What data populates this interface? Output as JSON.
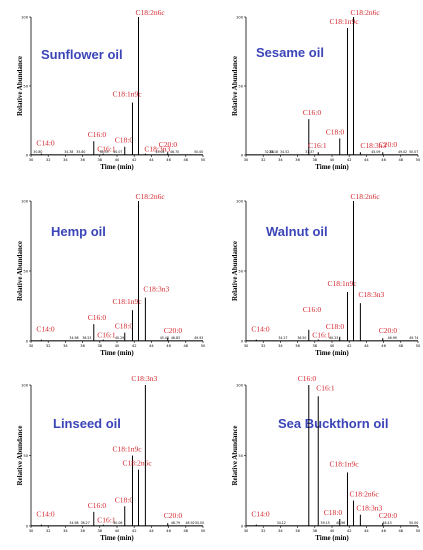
{
  "colors": {
    "title": "#3b45b8",
    "peak_label": "#d3262d",
    "axis": "#000000"
  },
  "chart_data": [
    {
      "type": "line",
      "title": "Sunflower oil",
      "xlabel": "Time (min)",
      "ylabel": "Relative Abundance",
      "xlim": [
        30,
        50
      ],
      "ylim": [
        0,
        100
      ],
      "x_ticks": [
        "30",
        "32",
        "34",
        "36",
        "38",
        "40",
        "42",
        "44",
        "46",
        "48",
        "50"
      ],
      "y_ticks": [
        "0",
        "50",
        "100"
      ],
      "peaks": [
        {
          "label": "C14:0",
          "x": 31.2,
          "y": 1
        },
        {
          "label": "C16:0",
          "x": 37.3,
          "y": 10
        },
        {
          "label": "C16:1",
          "x": 38.4,
          "y": 1
        },
        {
          "label": "C18:0",
          "x": 40.9,
          "y": 6
        },
        {
          "label": "C18:1n9c",
          "x": 41.8,
          "y": 38
        },
        {
          "label": "C18:2n6c",
          "x": 42.5,
          "y": 100
        },
        {
          "label": "C18:3n3",
          "x": 43.3,
          "y": 1
        },
        {
          "label": "C20:0",
          "x": 45.9,
          "y": 2
        }
      ],
      "rt_labels": [
        "30.80",
        "34.38",
        "35.80",
        "38.53",
        "40.07",
        "45.04",
        "46.70",
        "50.00"
      ]
    },
    {
      "type": "line",
      "title": "Sesame oil",
      "xlabel": "Time (min)",
      "ylabel": "Relative Abundance",
      "xlim": [
        30,
        50
      ],
      "ylim": [
        0,
        100
      ],
      "x_ticks": [
        "30",
        "32",
        "34",
        "36",
        "38",
        "40",
        "42",
        "44",
        "46",
        "48",
        "50"
      ],
      "y_ticks": [
        "0",
        "50",
        "100"
      ],
      "peaks": [
        {
          "label": "C16:0",
          "x": 37.3,
          "y": 26
        },
        {
          "label": "C16:1",
          "x": 38.4,
          "y": 2
        },
        {
          "label": "C18:0",
          "x": 40.9,
          "y": 12
        },
        {
          "label": "C18:1n9c",
          "x": 41.8,
          "y": 92
        },
        {
          "label": "C18:2n6c",
          "x": 42.5,
          "y": 100
        },
        {
          "label": "C18:3n3",
          "x": 43.3,
          "y": 2
        },
        {
          "label": "C20:0",
          "x": 45.9,
          "y": 2
        }
      ],
      "rt_labels": [
        "32.68",
        "33.18",
        "34.52",
        "37.37",
        "45.09",
        "49.02",
        "50.07"
      ]
    },
    {
      "type": "line",
      "title": "Hemp oil",
      "xlabel": "Time (min)",
      "ylabel": "Relative Abundance",
      "xlim": [
        30,
        50
      ],
      "ylim": [
        0,
        100
      ],
      "x_ticks": [
        "30",
        "32",
        "34",
        "36",
        "38",
        "40",
        "42",
        "44",
        "46",
        "48",
        "50"
      ],
      "y_ticks": [
        "0",
        "50",
        "100"
      ],
      "peaks": [
        {
          "label": "C14:0",
          "x": 31.2,
          "y": 1
        },
        {
          "label": "C16:0",
          "x": 37.3,
          "y": 12
        },
        {
          "label": "C16:1",
          "x": 38.4,
          "y": 1
        },
        {
          "label": "C18:0",
          "x": 40.9,
          "y": 6
        },
        {
          "label": "C18:1n9c",
          "x": 41.8,
          "y": 22
        },
        {
          "label": "C18:2n6c",
          "x": 42.5,
          "y": 100
        },
        {
          "label": "C18:3n3",
          "x": 43.3,
          "y": 31
        },
        {
          "label": "C20:0",
          "x": 45.9,
          "y": 2
        }
      ],
      "rt_labels": [
        "34.98",
        "36.53",
        "40.29",
        "45.48",
        "46.83",
        "49.93"
      ]
    },
    {
      "type": "line",
      "title": "Walnut oil",
      "xlabel": "Time (min)",
      "ylabel": "Relative Abundance",
      "xlim": [
        30,
        50
      ],
      "ylim": [
        0,
        100
      ],
      "x_ticks": [
        "30",
        "32",
        "34",
        "36",
        "38",
        "40",
        "42",
        "44",
        "46",
        "48",
        "50"
      ],
      "y_ticks": [
        "0",
        "50",
        "100"
      ],
      "peaks": [
        {
          "label": "C14:0",
          "x": 31.2,
          "y": 1
        },
        {
          "label": "C16:0",
          "x": 37.3,
          "y": 8
        },
        {
          "label": "C16:1",
          "x": 38.4,
          "y": 1
        },
        {
          "label": "C18:0",
          "x": 40.9,
          "y": 3
        },
        {
          "label": "C18:1n9c",
          "x": 41.8,
          "y": 35
        },
        {
          "label": "C18:2n6c",
          "x": 42.5,
          "y": 100
        },
        {
          "label": "C18:3n3",
          "x": 43.3,
          "y": 27
        },
        {
          "label": "C20:0",
          "x": 45.9,
          "y": 2
        }
      ],
      "rt_labels": [
        "34.27",
        "36.50",
        "40.23",
        "46.99",
        "49.74"
      ]
    },
    {
      "type": "line",
      "title": "Linseed oil",
      "xlabel": "Time (min)",
      "ylabel": "Relative Abundance",
      "xlim": [
        30,
        50
      ],
      "ylim": [
        0,
        100
      ],
      "x_ticks": [
        "30",
        "32",
        "34",
        "36",
        "38",
        "40",
        "42",
        "44",
        "46",
        "48",
        "50"
      ],
      "y_ticks": [
        "0",
        "50",
        "100"
      ],
      "peaks": [
        {
          "label": "C14:0",
          "x": 31.2,
          "y": 1
        },
        {
          "label": "C16:0",
          "x": 37.3,
          "y": 10
        },
        {
          "label": "C16:1",
          "x": 38.4,
          "y": 1
        },
        {
          "label": "C18:0",
          "x": 40.9,
          "y": 14
        },
        {
          "label": "C18:1n9c",
          "x": 41.8,
          "y": 50
        },
        {
          "label": "C18:2n6c",
          "x": 42.5,
          "y": 40
        },
        {
          "label": "C18:3n3",
          "x": 43.3,
          "y": 100
        },
        {
          "label": "C20:0",
          "x": 45.9,
          "y": 2
        }
      ],
      "rt_labels": [
        "34.98",
        "36.27",
        "40.06",
        "46.79",
        "48.92",
        "50.00"
      ]
    },
    {
      "type": "line",
      "title": "Sea Buckthorn oil",
      "xlabel": "Time (min)",
      "ylabel": "Relative Abundance",
      "xlim": [
        30,
        50
      ],
      "ylim": [
        0,
        100
      ],
      "x_ticks": [
        "30",
        "32",
        "34",
        "36",
        "38",
        "40",
        "42",
        "44",
        "46",
        "48",
        "50"
      ],
      "y_ticks": [
        "0",
        "50",
        "100"
      ],
      "peaks": [
        {
          "label": "C14:0",
          "x": 31.2,
          "y": 1
        },
        {
          "label": "C16:0",
          "x": 37.3,
          "y": 100
        },
        {
          "label": "C16:1",
          "x": 38.4,
          "y": 92
        },
        {
          "label": "C18:0",
          "x": 40.9,
          "y": 5
        },
        {
          "label": "C18:1n9c",
          "x": 41.8,
          "y": 38
        },
        {
          "label": "C18:2n6c",
          "x": 42.5,
          "y": 18
        },
        {
          "label": "C18:3n3",
          "x": 43.3,
          "y": 8
        },
        {
          "label": "C20:0",
          "x": 45.9,
          "y": 2
        }
      ],
      "rt_labels": [
        "34.12",
        "39.15",
        "40.96",
        "46.43",
        "50.00"
      ]
    }
  ]
}
